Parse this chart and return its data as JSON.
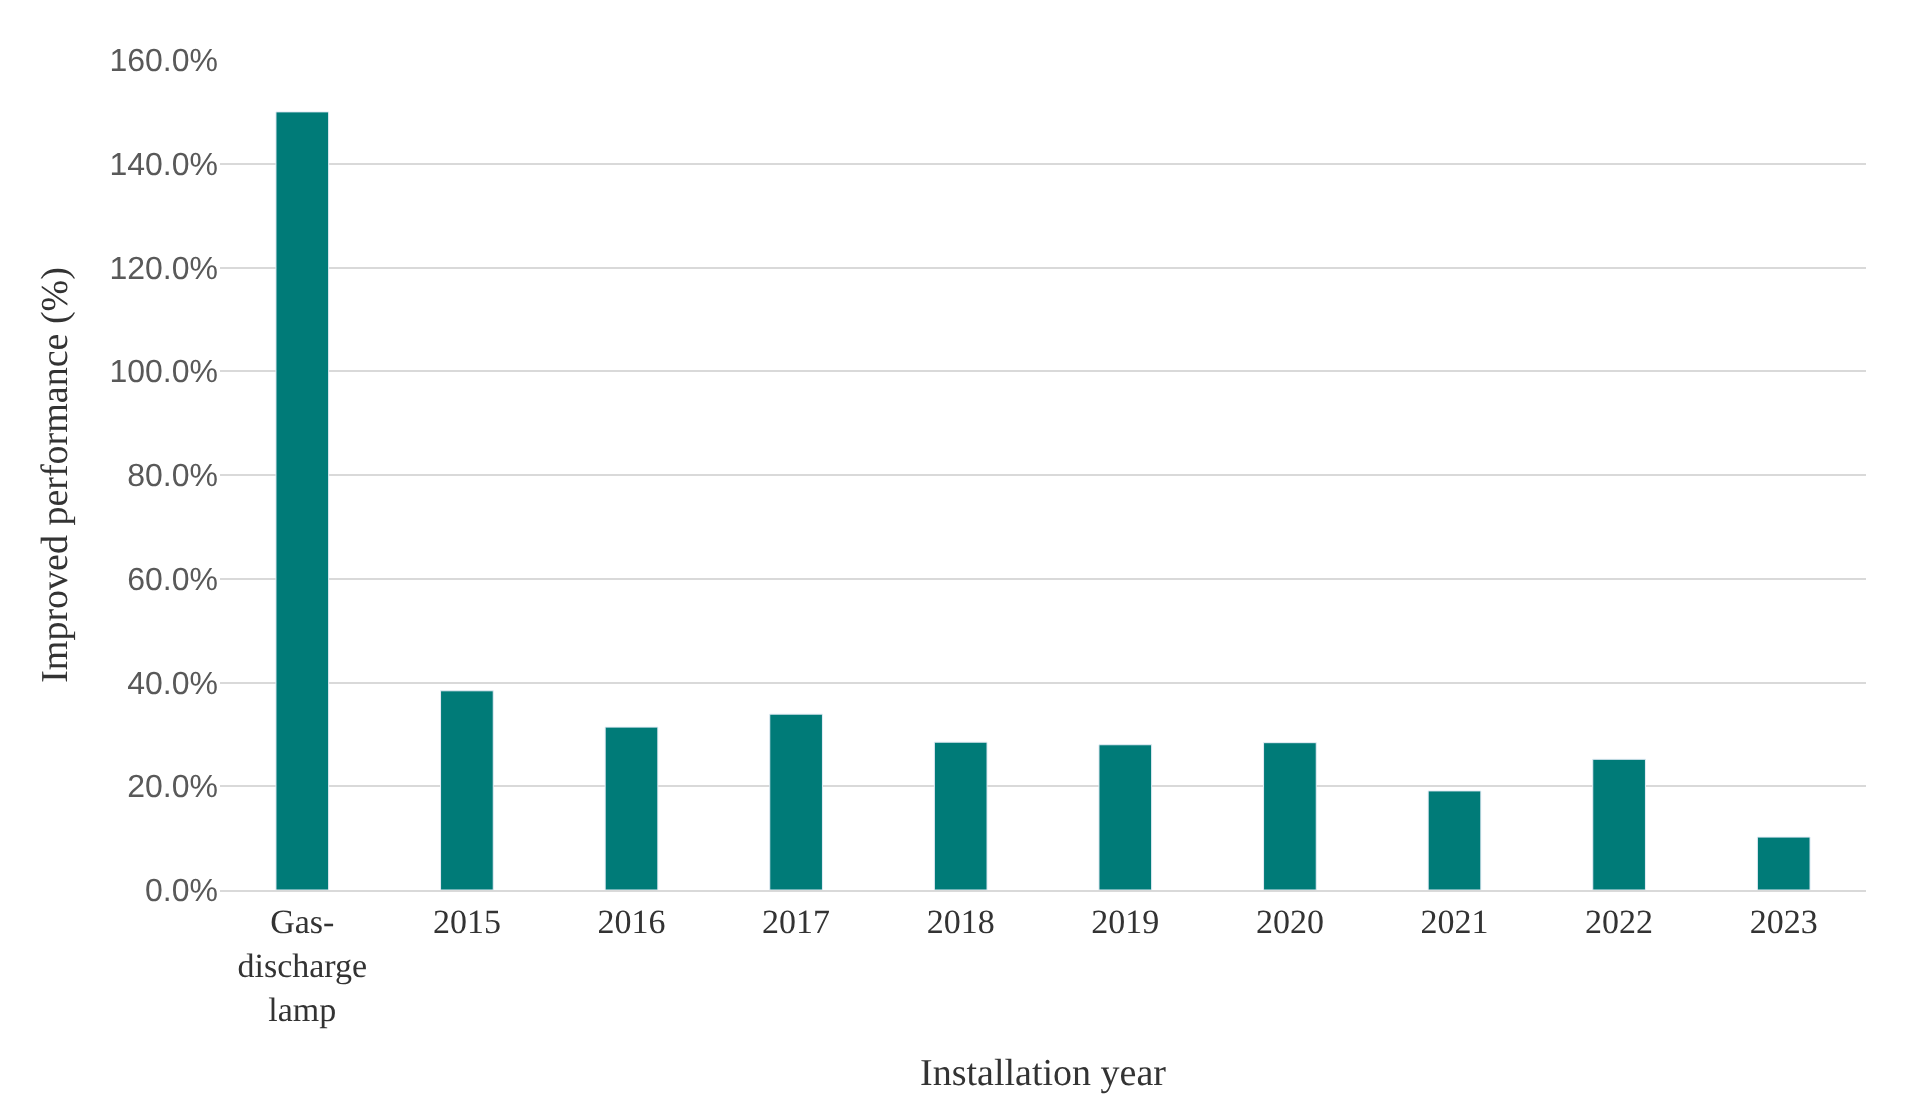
{
  "chart_data": {
    "type": "bar",
    "xlabel": "Installation year",
    "ylabel": "Improved performance (%)",
    "categories": [
      "Gas-\ndischarge\nlamp",
      "2015",
      "2016",
      "2017",
      "2018",
      "2019",
      "2020",
      "2021",
      "2022",
      "2023"
    ],
    "values": [
      150,
      38.4,
      31.4,
      33.9,
      28.5,
      28.0,
      28.4,
      19.1,
      25.2,
      10.2
    ],
    "color": "#007b78",
    "ylim": [
      0,
      160
    ],
    "yticks": [
      {
        "value": 0,
        "label": "0.0%"
      },
      {
        "value": 20,
        "label": "20.0%"
      },
      {
        "value": 40,
        "label": "40.0%"
      },
      {
        "value": 60,
        "label": "60.0%"
      },
      {
        "value": 80,
        "label": "80.0%"
      },
      {
        "value": 100,
        "label": "100.0%"
      },
      {
        "value": 120,
        "label": "120.0%"
      },
      {
        "value": 140,
        "label": "140.0%"
      },
      {
        "value": 160,
        "label": "160.0%"
      }
    ],
    "grid": "y"
  }
}
